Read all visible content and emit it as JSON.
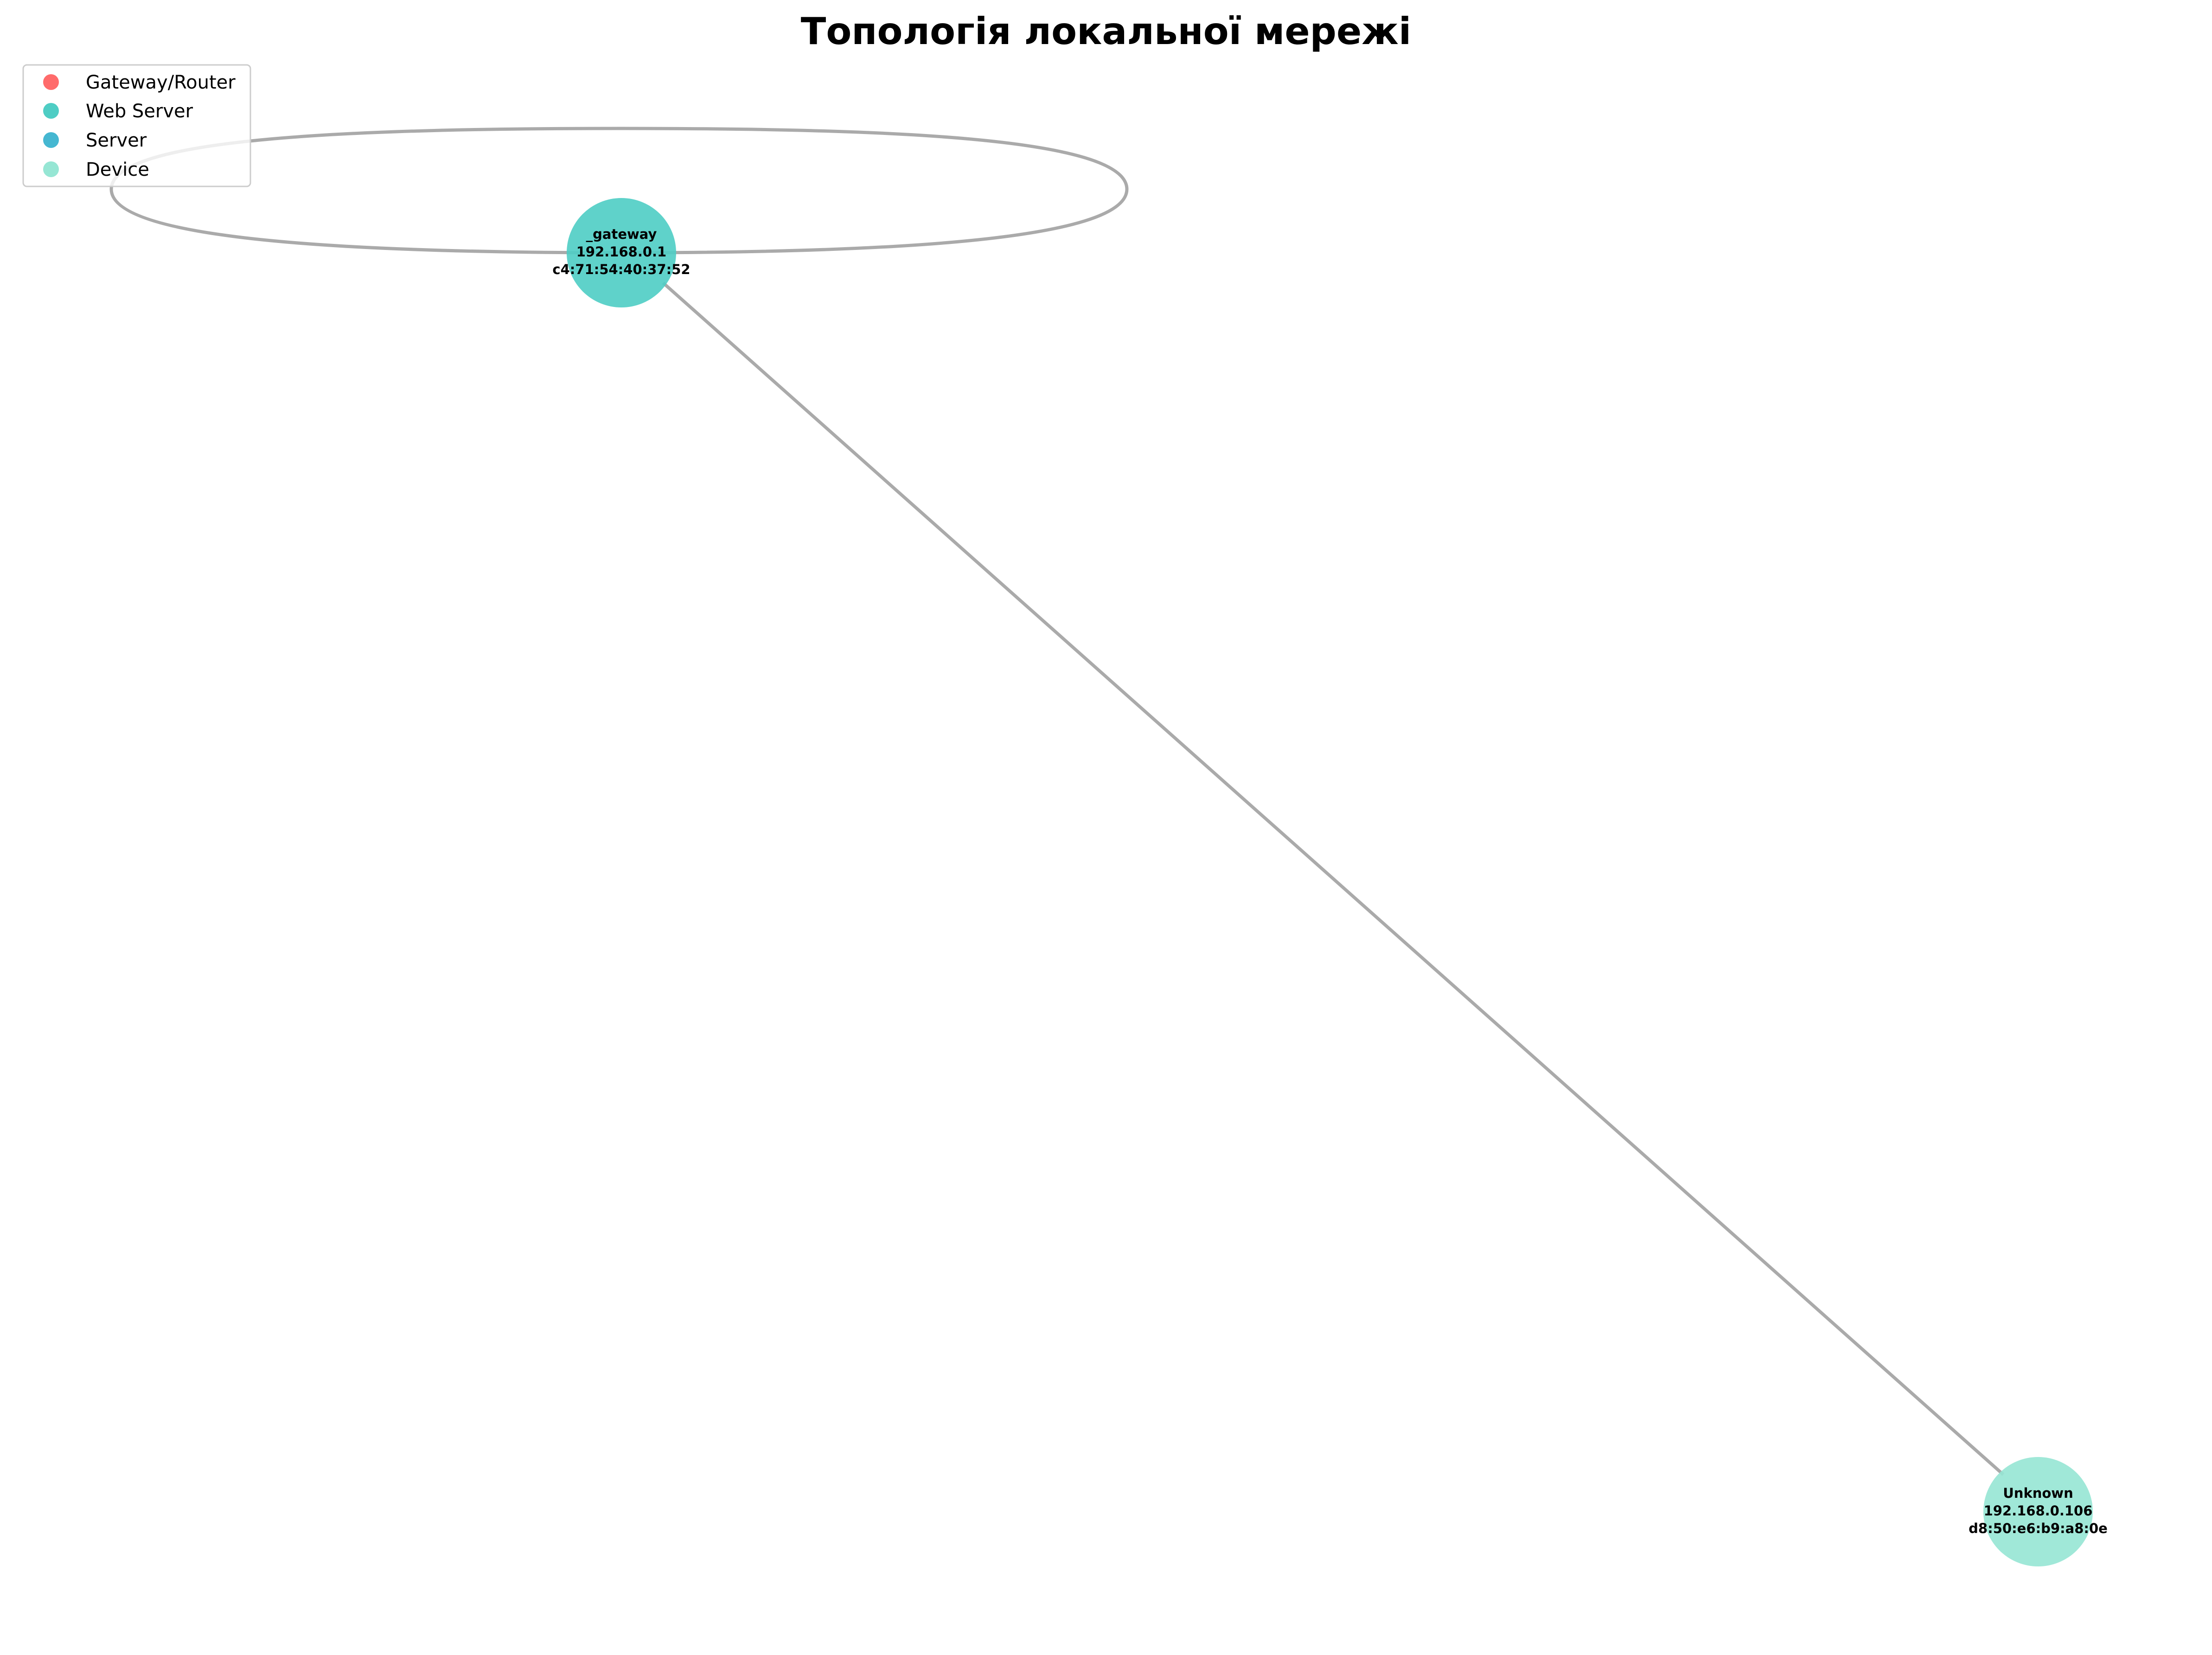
{
  "title": "Топологія локальної мережі",
  "legend": [
    {
      "label": "Gateway/Router",
      "color": "#ff6b6b"
    },
    {
      "label": "Web Server",
      "color": "#4ecdc4"
    },
    {
      "label": "Server",
      "color": "#45b7d1"
    },
    {
      "label": "Device",
      "color": "#96e6d4"
    }
  ],
  "nodes": [
    {
      "id": "gateway",
      "name": "_gateway",
      "ip": "192.168.0.1",
      "mac": "c4:71:54:40:37:52",
      "type": "Web Server",
      "color": "#4ecdc4"
    },
    {
      "id": "unknown",
      "name": "Unknown",
      "ip": "192.168.0.106",
      "mac": "d8:50:e6:b9:a8:0e",
      "type": "Device",
      "color": "#96e6d4"
    }
  ],
  "edges": [
    {
      "from": "gateway",
      "to": "gateway"
    },
    {
      "from": "gateway",
      "to": "unknown"
    }
  ],
  "edge_color": "#aaaaaa"
}
